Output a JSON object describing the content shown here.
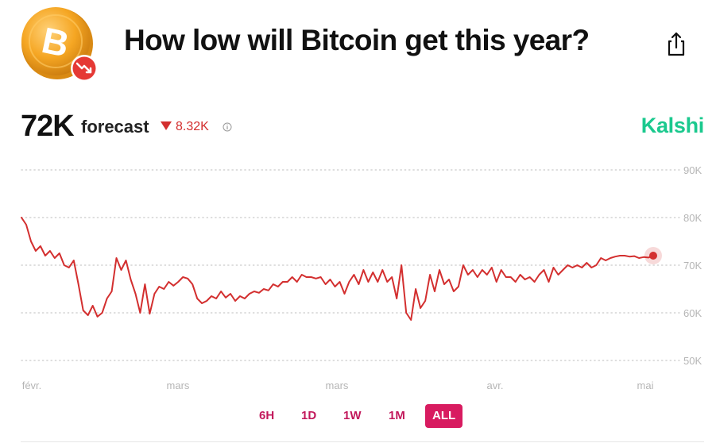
{
  "header": {
    "title": "How low will Bitcoin get this year?",
    "logo_icon": "bitcoin-logo-icon",
    "logo_letter": "B",
    "badge_icon": "trending-down-icon",
    "share_icon": "share-icon"
  },
  "forecast": {
    "value": "72K",
    "label": "forecast",
    "change": "8.32K",
    "change_direction": "down",
    "info_icon": "info-icon"
  },
  "brand": "Kalshi",
  "colors": {
    "series": "#d32f2f",
    "brand": "#1bc98e",
    "tab_accent": "#d81b60",
    "title": "#111111"
  },
  "chart_data": {
    "type": "line",
    "xlabel": "",
    "ylabel": "",
    "x_ticks": [
      "févr.",
      "mars",
      "mars",
      "avr.",
      "mai"
    ],
    "y_ticks": [
      "90K",
      "80K",
      "70K",
      "60K",
      "50K"
    ],
    "ylim": [
      50000,
      90000
    ],
    "grid": "horizontal-dotted",
    "y_axis_side": "right",
    "series": [
      {
        "values": [
          80000,
          78500,
          75000,
          73000,
          74000,
          72000,
          73000,
          71500,
          72500,
          70000,
          69500,
          71000,
          66000,
          60500,
          59500,
          61500,
          59200,
          60000,
          63000,
          64500,
          71500,
          69000,
          71000,
          67000,
          64000,
          60000,
          66000,
          59800,
          64000,
          65500,
          65000,
          66500,
          65700,
          66500,
          67500,
          67200,
          66000,
          63000,
          62000,
          62500,
          63500,
          63000,
          64500,
          63200,
          64000,
          62500,
          63500,
          63000,
          64000,
          64500,
          64200,
          65000,
          64700,
          66000,
          65500,
          66500,
          66500,
          67500,
          66500,
          68000,
          67500,
          67500,
          67200,
          67500,
          66000,
          67000,
          65500,
          66500,
          64000,
          66500,
          68000,
          66000,
          69000,
          66500,
          68500,
          66500,
          69000,
          66500,
          67500,
          63000,
          70000,
          60000,
          58500,
          65000,
          61000,
          62500,
          68000,
          64500,
          69000,
          66000,
          67000,
          64500,
          65500,
          70000,
          68000,
          69000,
          67500,
          69000,
          68000,
          69500,
          66500,
          69000,
          67500,
          67500,
          66500,
          68000,
          67000,
          67500,
          66500,
          68000,
          69000,
          66500,
          69500,
          68000,
          69000,
          70000,
          69500,
          70000,
          69500,
          70500,
          69500,
          70000,
          71500,
          71000,
          71500,
          71800,
          72000,
          72000,
          71800,
          71900,
          71500,
          71700,
          71600,
          72000
        ]
      }
    ]
  },
  "timeframes": [
    {
      "label": "6H",
      "active": false
    },
    {
      "label": "1D",
      "active": false
    },
    {
      "label": "1W",
      "active": false
    },
    {
      "label": "1M",
      "active": false
    },
    {
      "label": "ALL",
      "active": true
    }
  ]
}
